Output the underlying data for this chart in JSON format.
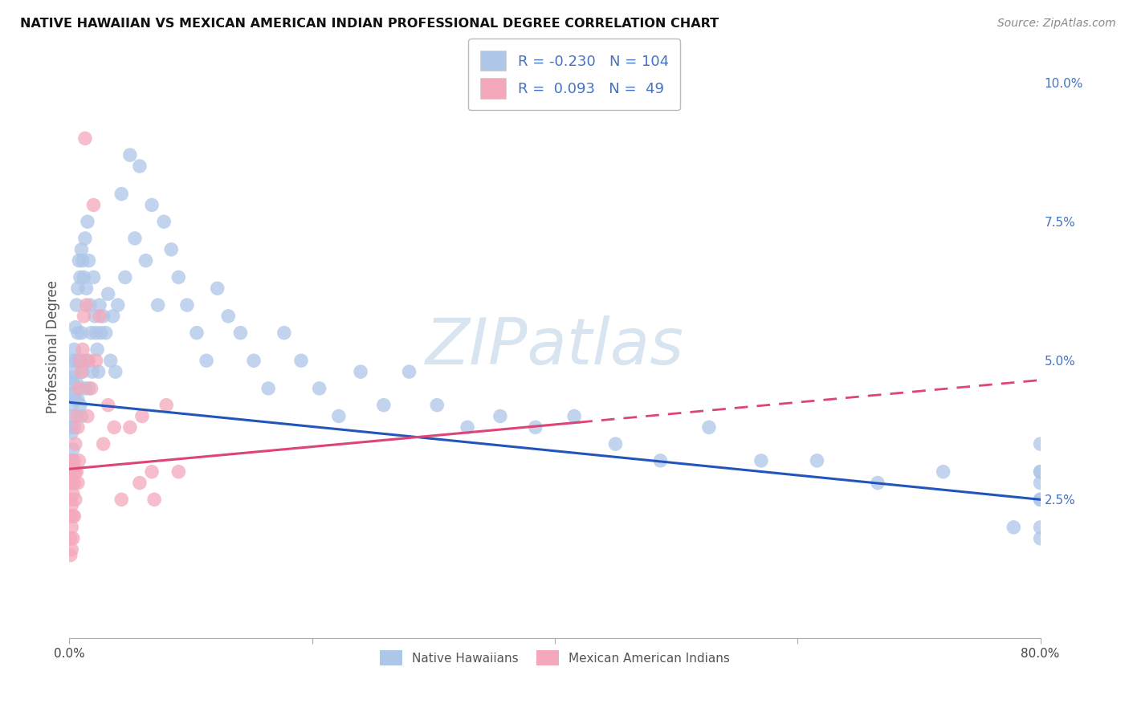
{
  "title": "NATIVE HAWAIIAN VS MEXICAN AMERICAN INDIAN PROFESSIONAL DEGREE CORRELATION CHART",
  "source": "Source: ZipAtlas.com",
  "ylabel": "Professional Degree",
  "xlim": [
    0,
    0.8
  ],
  "ylim": [
    0,
    0.105
  ],
  "xtick_positions": [
    0.0,
    0.2,
    0.4,
    0.6,
    0.8
  ],
  "xtick_labels": [
    "0.0%",
    "",
    "",
    "",
    "80.0%"
  ],
  "ytick_positions": [
    0.0,
    0.025,
    0.05,
    0.075,
    0.1
  ],
  "ytick_labels": [
    "",
    "2.5%",
    "5.0%",
    "7.5%",
    "10.0%"
  ],
  "blue_color": "#aec6e8",
  "pink_color": "#f4a8bb",
  "line_blue": "#2255bb",
  "line_pink": "#dd4477",
  "background": "#ffffff",
  "grid_color": "#cccccc",
  "tick_color": "#4472c4",
  "trend_blue_y_start": 0.0425,
  "trend_blue_y_end": 0.025,
  "trend_pink_y_start": 0.0305,
  "trend_pink_y_end": 0.0465,
  "trend_pink_solid_end_x": 0.42,
  "native_hawaiians_x": [
    0.001,
    0.001,
    0.002,
    0.002,
    0.002,
    0.002,
    0.003,
    0.003,
    0.003,
    0.003,
    0.004,
    0.004,
    0.004,
    0.004,
    0.005,
    0.005,
    0.005,
    0.006,
    0.006,
    0.007,
    0.007,
    0.007,
    0.008,
    0.008,
    0.009,
    0.009,
    0.01,
    0.01,
    0.01,
    0.011,
    0.011,
    0.012,
    0.012,
    0.013,
    0.013,
    0.014,
    0.015,
    0.015,
    0.016,
    0.016,
    0.017,
    0.018,
    0.019,
    0.02,
    0.021,
    0.022,
    0.023,
    0.024,
    0.025,
    0.026,
    0.028,
    0.03,
    0.032,
    0.034,
    0.036,
    0.038,
    0.04,
    0.043,
    0.046,
    0.05,
    0.054,
    0.058,
    0.063,
    0.068,
    0.073,
    0.078,
    0.084,
    0.09,
    0.097,
    0.105,
    0.113,
    0.122,
    0.131,
    0.141,
    0.152,
    0.164,
    0.177,
    0.191,
    0.206,
    0.222,
    0.24,
    0.259,
    0.28,
    0.303,
    0.328,
    0.355,
    0.384,
    0.416,
    0.45,
    0.487,
    0.527,
    0.57,
    0.616,
    0.666,
    0.72,
    0.778,
    0.8,
    0.8,
    0.8,
    0.8,
    0.8,
    0.8,
    0.8,
    0.8
  ],
  "native_hawaiians_y": [
    0.044,
    0.038,
    0.047,
    0.042,
    0.037,
    0.032,
    0.05,
    0.046,
    0.04,
    0.034,
    0.052,
    0.048,
    0.044,
    0.038,
    0.056,
    0.05,
    0.043,
    0.06,
    0.046,
    0.063,
    0.055,
    0.043,
    0.068,
    0.05,
    0.065,
    0.042,
    0.07,
    0.055,
    0.04,
    0.068,
    0.048,
    0.065,
    0.05,
    0.072,
    0.045,
    0.063,
    0.075,
    0.05,
    0.068,
    0.045,
    0.06,
    0.055,
    0.048,
    0.065,
    0.058,
    0.055,
    0.052,
    0.048,
    0.06,
    0.055,
    0.058,
    0.055,
    0.062,
    0.05,
    0.058,
    0.048,
    0.06,
    0.08,
    0.065,
    0.087,
    0.072,
    0.085,
    0.068,
    0.078,
    0.06,
    0.075,
    0.07,
    0.065,
    0.06,
    0.055,
    0.05,
    0.063,
    0.058,
    0.055,
    0.05,
    0.045,
    0.055,
    0.05,
    0.045,
    0.04,
    0.048,
    0.042,
    0.048,
    0.042,
    0.038,
    0.04,
    0.038,
    0.04,
    0.035,
    0.032,
    0.038,
    0.032,
    0.032,
    0.028,
    0.03,
    0.02,
    0.035,
    0.028,
    0.025,
    0.018,
    0.03,
    0.025,
    0.03,
    0.02
  ],
  "mexican_x": [
    0.001,
    0.001,
    0.001,
    0.001,
    0.001,
    0.002,
    0.002,
    0.002,
    0.002,
    0.002,
    0.003,
    0.003,
    0.003,
    0.003,
    0.004,
    0.004,
    0.004,
    0.005,
    0.005,
    0.005,
    0.006,
    0.006,
    0.007,
    0.007,
    0.008,
    0.008,
    0.009,
    0.01,
    0.011,
    0.012,
    0.013,
    0.014,
    0.015,
    0.016,
    0.018,
    0.02,
    0.022,
    0.025,
    0.028,
    0.032,
    0.037,
    0.043,
    0.05,
    0.058,
    0.068,
    0.08,
    0.09,
    0.06,
    0.07
  ],
  "mexican_y": [
    0.028,
    0.025,
    0.022,
    0.018,
    0.015,
    0.032,
    0.028,
    0.024,
    0.02,
    0.016,
    0.03,
    0.026,
    0.022,
    0.018,
    0.032,
    0.028,
    0.022,
    0.035,
    0.03,
    0.025,
    0.04,
    0.03,
    0.038,
    0.028,
    0.045,
    0.032,
    0.05,
    0.048,
    0.052,
    0.058,
    0.09,
    0.06,
    0.04,
    0.05,
    0.045,
    0.078,
    0.05,
    0.058,
    0.035,
    0.042,
    0.038,
    0.025,
    0.038,
    0.028,
    0.03,
    0.042,
    0.03,
    0.04,
    0.025
  ]
}
